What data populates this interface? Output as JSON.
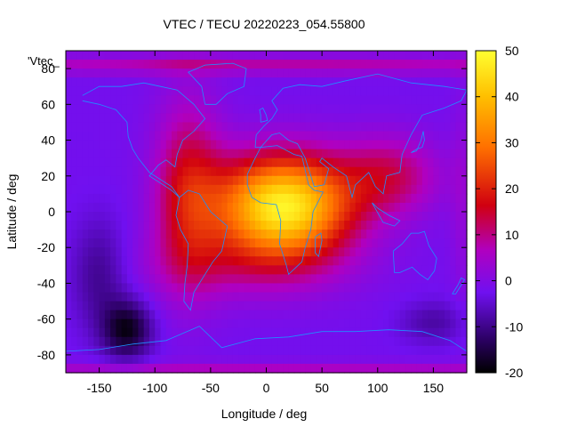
{
  "chart_data": {
    "type": "heatmap",
    "title": "VTEC / TECU 20220223_054.55800",
    "xlabel": "Longitude / deg",
    "ylabel": "Latitude / deg",
    "legend_key": "'Vtec_",
    "xlim": [
      -180,
      180
    ],
    "ylim": [
      -90,
      90
    ],
    "x_ticks": [
      -150,
      -100,
      -50,
      0,
      50,
      100,
      150
    ],
    "y_ticks": [
      -80,
      -60,
      -40,
      -20,
      0,
      20,
      40,
      60,
      80
    ],
    "colorbar": {
      "range": [
        -20,
        50
      ],
      "ticks": [
        -20,
        -10,
        0,
        10,
        20,
        30,
        40,
        50
      ],
      "palette": [
        "#000000",
        "#2a0060",
        "#7010f0",
        "#b000c0",
        "#d00010",
        "#ff7000",
        "#ffc000",
        "#ffff30"
      ]
    },
    "colors": {
      "coastline": "#1e90ff"
    },
    "field_features": [
      {
        "kind": "peak",
        "lon": 15,
        "lat": 5,
        "value": 48
      },
      {
        "kind": "minimum",
        "lon": -120,
        "lat": -68,
        "value": -18
      },
      {
        "kind": "minimum_arc",
        "lon": 150,
        "lat": -60,
        "value": -5
      }
    ]
  }
}
